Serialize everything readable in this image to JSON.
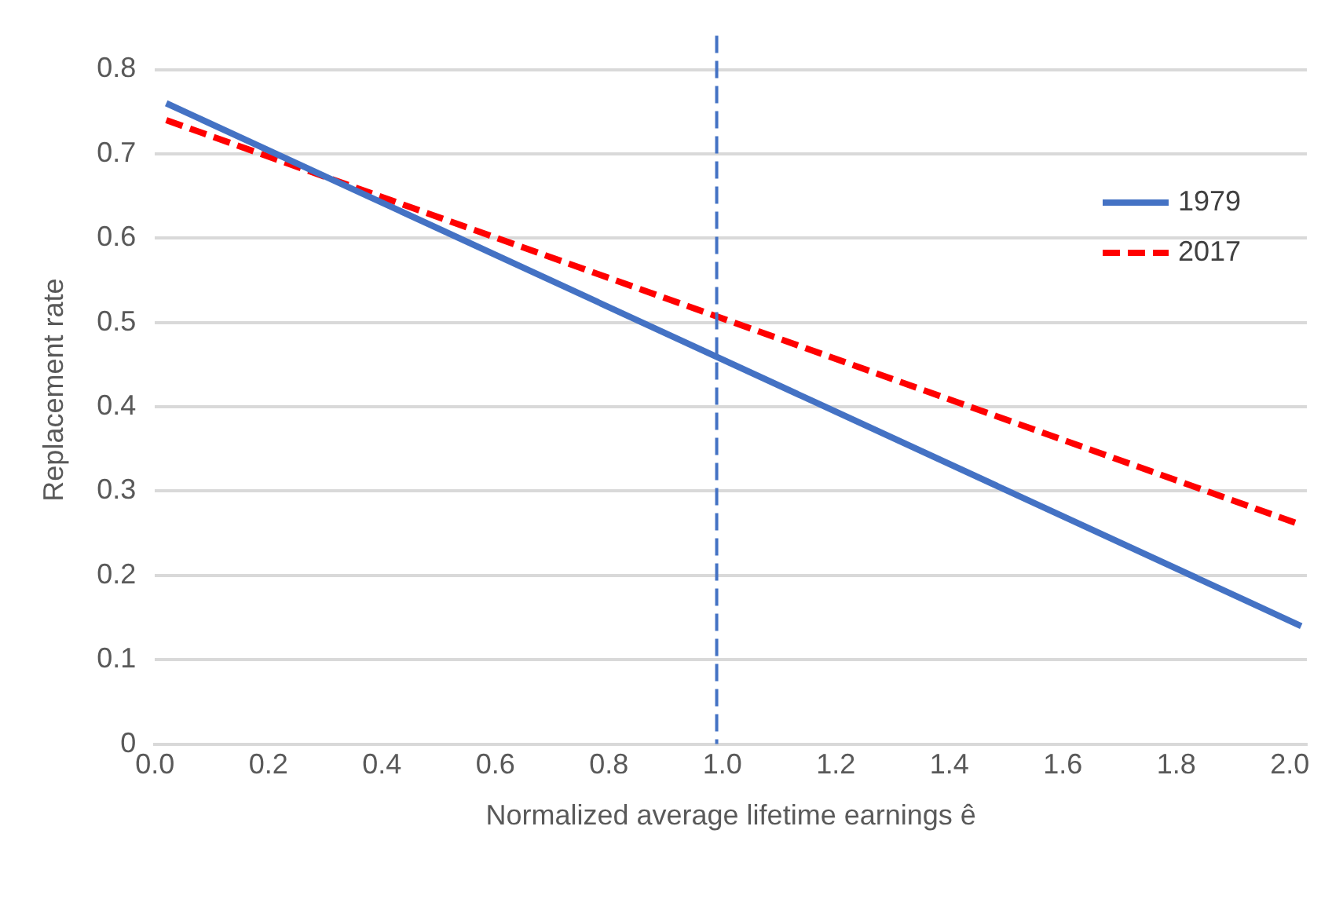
{
  "chart_data": {
    "type": "line",
    "xlabel": "Normalized average lifetime earnings ê",
    "ylabel": "Replacement rate",
    "x": [
      0.02,
      2.02
    ],
    "series": [
      {
        "name": "1979",
        "color": "#4472c4",
        "values": [
          0.76,
          0.14
        ],
        "line_style": "solid"
      },
      {
        "name": "2017",
        "color": "#ff0000",
        "values": [
          0.74,
          0.26
        ],
        "line_style": "dashed"
      }
    ],
    "xlim": [
      0,
      2.03
    ],
    "xticks": [
      {
        "value": 0,
        "label": "0.0"
      },
      0.2,
      0.4,
      0.6,
      0.8,
      {
        "value": 1,
        "label": "1.0"
      },
      1.2,
      1.4,
      1.6,
      1.8,
      {
        "value": 2,
        "label": "2.0"
      }
    ],
    "ylim": [
      0,
      0.84
    ],
    "yticks": [
      0,
      0.1,
      0.2,
      0.3,
      0.4,
      0.5,
      0.6,
      0.7,
      0.8
    ],
    "ref_lines": [
      {
        "axis": "x",
        "value": 0.99,
        "color": "#4472c4",
        "line_style": "dashed"
      }
    ],
    "grid": "y",
    "legend": "right",
    "marker": "none"
  }
}
